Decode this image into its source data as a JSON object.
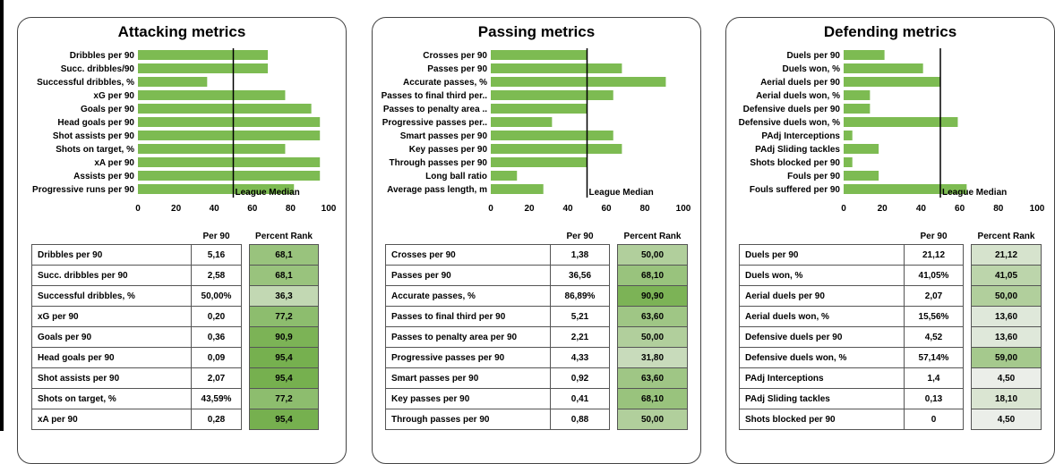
{
  "chart_data": [
    {
      "type": "bar",
      "orientation": "horizontal",
      "title": "Attacking metrics",
      "categories": [
        "Dribbles per 90",
        "Succ. dribbles/90",
        "Successful dribbles, %",
        "xG per 90",
        "Goals per 90",
        "Head goals per 90",
        "Shot assists per 90",
        "Shots on target, %",
        "xA per 90",
        "Assists per 90",
        "Progressive runs per 90"
      ],
      "values": [
        68.1,
        68.1,
        36.3,
        77.2,
        90.9,
        95.4,
        95.4,
        77.2,
        95.4,
        95.4,
        81.8
      ],
      "xlim": [
        0,
        100
      ],
      "xticks": [
        "0",
        "20",
        "40",
        "60",
        "80",
        "100"
      ],
      "reference_line": {
        "value": 50,
        "label": "League Median"
      },
      "bar_color": "#7dbb52"
    },
    {
      "type": "bar",
      "orientation": "horizontal",
      "title": "Passing metrics",
      "categories": [
        "Crosses per 90",
        "Passes per 90",
        "Accurate passes, %",
        "Passes to final third per..",
        "Passes to penalty area ..",
        "Progressive passes per..",
        "Smart passes per 90",
        "Key passes per 90",
        "Through passes per 90",
        "Long ball ratio",
        "Average pass length, m"
      ],
      "values": [
        50.0,
        68.1,
        90.9,
        63.6,
        50.0,
        31.8,
        63.6,
        68.1,
        50.0,
        13.6,
        27.3
      ],
      "xlim": [
        0,
        100
      ],
      "xticks": [
        "0",
        "20",
        "40",
        "60",
        "80",
        "100"
      ],
      "reference_line": {
        "value": 50,
        "label": "League Median"
      },
      "bar_color": "#7dbb52"
    },
    {
      "type": "bar",
      "orientation": "horizontal",
      "title": "Defending metrics",
      "categories": [
        "Duels per 90",
        "Duels won, %",
        "Aerial duels per 90",
        "Aerial duels won, %",
        "Defensive duels per 90",
        "Defensive duels won, %",
        "PAdj Interceptions",
        "PAdj Sliding tackles",
        "Shots blocked per 90",
        "Fouls per 90",
        "Fouls suffered per 90"
      ],
      "values": [
        21.12,
        41.05,
        50.0,
        13.6,
        13.6,
        59.0,
        4.5,
        18.1,
        4.5,
        18.1,
        63.6
      ],
      "xlim": [
        0,
        100
      ],
      "xticks": [
        "0",
        "20",
        "40",
        "60",
        "80",
        "100"
      ],
      "reference_line": {
        "value": 50,
        "label": "League Median"
      },
      "bar_color": "#7dbb52"
    }
  ],
  "tables": [
    {
      "col_per90": "Per 90",
      "col_rank": "Percent Rank",
      "rows": [
        {
          "name": "Dribbles per 90",
          "per90": "5,16",
          "rank": "68,1",
          "rank_value": 68.1
        },
        {
          "name": "Succ. dribbles per 90",
          "per90": "2,58",
          "rank": "68,1",
          "rank_value": 68.1
        },
        {
          "name": "Successful dribbles, %",
          "per90": "50,00%",
          "rank": "36,3",
          "rank_value": 36.3
        },
        {
          "name": "xG per 90",
          "per90": "0,20",
          "rank": "77,2",
          "rank_value": 77.2
        },
        {
          "name": "Goals per 90",
          "per90": "0,36",
          "rank": "90,9",
          "rank_value": 90.9
        },
        {
          "name": "Head goals per 90",
          "per90": "0,09",
          "rank": "95,4",
          "rank_value": 95.4
        },
        {
          "name": "Shot assists per 90",
          "per90": "2,07",
          "rank": "95,4",
          "rank_value": 95.4
        },
        {
          "name": "Shots on target, %",
          "per90": "43,59%",
          "rank": "77,2",
          "rank_value": 77.2
        },
        {
          "name": "xA per 90",
          "per90": "0,28",
          "rank": "95,4",
          "rank_value": 95.4
        }
      ]
    },
    {
      "col_per90": "Per 90",
      "col_rank": "Percent Rank",
      "rows": [
        {
          "name": "Crosses per 90",
          "per90": "1,38",
          "rank": "50,00",
          "rank_value": 50.0
        },
        {
          "name": "Passes per 90",
          "per90": "36,56",
          "rank": "68,10",
          "rank_value": 68.1
        },
        {
          "name": "Accurate passes, %",
          "per90": "86,89%",
          "rank": "90,90",
          "rank_value": 90.9
        },
        {
          "name": "Passes to final third per 90",
          "per90": "5,21",
          "rank": "63,60",
          "rank_value": 63.6
        },
        {
          "name": "Passes to penalty area per 90",
          "per90": "2,21",
          "rank": "50,00",
          "rank_value": 50.0
        },
        {
          "name": "Progressive passes per 90",
          "per90": "4,33",
          "rank": "31,80",
          "rank_value": 31.8
        },
        {
          "name": "Smart passes per 90",
          "per90": "0,92",
          "rank": "63,60",
          "rank_value": 63.6
        },
        {
          "name": "Key passes per 90",
          "per90": "0,41",
          "rank": "68,10",
          "rank_value": 68.1
        },
        {
          "name": "Through passes per 90",
          "per90": "0,88",
          "rank": "50,00",
          "rank_value": 50.0
        }
      ]
    },
    {
      "col_per90": "Per 90",
      "col_rank": "Percent Rank",
      "rows": [
        {
          "name": "Duels per 90",
          "per90": "21,12",
          "rank": "21,12",
          "rank_value": 21.12
        },
        {
          "name": "Duels won, %",
          "per90": "41,05%",
          "rank": "41,05",
          "rank_value": 41.05
        },
        {
          "name": "Aerial duels per 90",
          "per90": "2,07",
          "rank": "50,00",
          "rank_value": 50.0
        },
        {
          "name": "Aerial duels won, %",
          "per90": "15,56%",
          "rank": "13,60",
          "rank_value": 13.6
        },
        {
          "name": "Defensive duels per 90",
          "per90": "4,52",
          "rank": "13,60",
          "rank_value": 13.6
        },
        {
          "name": "Defensive duels won, %",
          "per90": "57,14%",
          "rank": "59,00",
          "rank_value": 59.0
        },
        {
          "name": "PAdj Interceptions",
          "per90": "1,4",
          "rank": "4,50",
          "rank_value": 4.5
        },
        {
          "name": "PAdj Sliding tackles",
          "per90": "0,13",
          "rank": "18,10",
          "rank_value": 18.1
        },
        {
          "name": "Shots blocked per 90",
          "per90": "0",
          "rank": "4,50",
          "rank_value": 4.5
        }
      ]
    }
  ]
}
